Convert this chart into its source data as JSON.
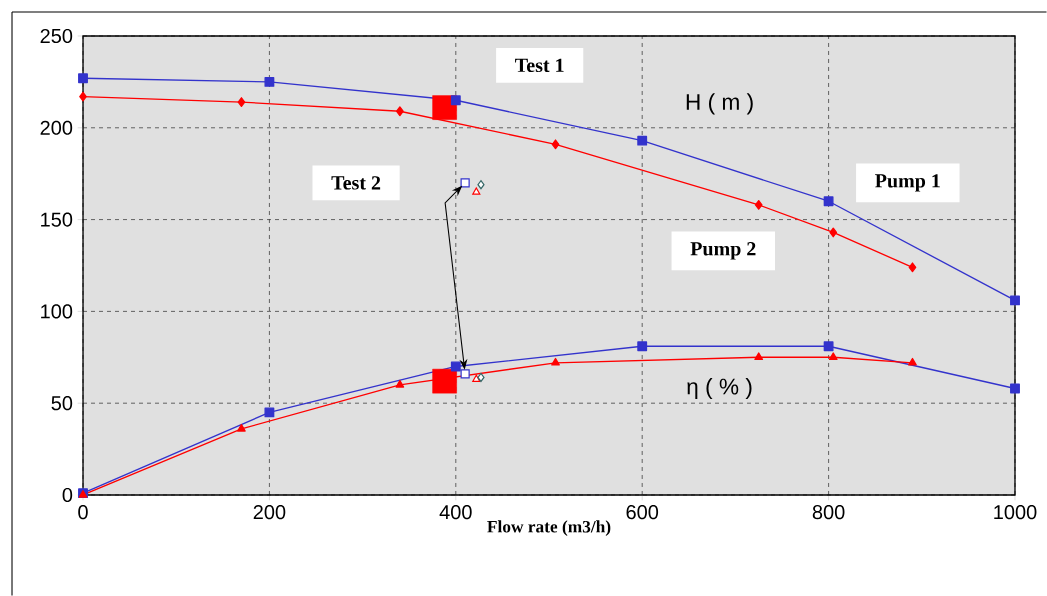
{
  "chart_data": {
    "type": "line",
    "xlabel": "Flow rate (m3/h)",
    "xlim": [
      0,
      1000
    ],
    "ylim": [
      0,
      250
    ],
    "xticks": [
      0,
      200,
      400,
      600,
      800,
      1000
    ],
    "yticks": [
      0,
      50,
      100,
      150,
      200,
      250
    ],
    "grid": true,
    "line_style": "solid",
    "series": [
      {
        "color": "#3333cc",
        "marker": "square",
        "x": [
          0,
          200,
          400,
          600,
          800,
          1000
        ],
        "values": [
          227,
          225,
          215,
          193,
          160,
          106
        ]
      },
      {
        "color": "#ff0000",
        "marker": "diamond",
        "x": [
          0,
          170,
          340,
          507,
          725,
          805,
          890
        ],
        "values": [
          217,
          214,
          209,
          191,
          158,
          143,
          124
        ]
      },
      {
        "color": "#3333cc",
        "marker": "square",
        "x": [
          0,
          200,
          400,
          600,
          800,
          1000
        ],
        "values": [
          1,
          45,
          70,
          81,
          81,
          58
        ]
      },
      {
        "color": "#ff0000",
        "marker": "triangle",
        "x": [
          0,
          170,
          340,
          507,
          725,
          805,
          890
        ],
        "values": [
          0,
          36,
          60,
          72,
          75,
          75,
          72
        ]
      },
      {
        "type": "scatter",
        "color": "#ff0000",
        "marker": "square",
        "x": [
          388,
          388
        ],
        "values": [
          211,
          62
        ]
      },
      {
        "type": "scatter",
        "color": "#3333cc",
        "marker": "square",
        "x": [
          410,
          410
        ],
        "values": [
          170,
          66
        ]
      },
      {
        "type": "scatter",
        "color": "#ff0000",
        "marker": "triangle",
        "x": [
          422,
          422
        ],
        "values": [
          165,
          63
        ]
      },
      {
        "type": "scatter",
        "color": "#336666",
        "marker": "diamond",
        "x": [
          427,
          427
        ],
        "values": [
          169,
          64
        ]
      }
    ],
    "annotations": [
      "Test 1",
      "Test 2",
      "Pump 1",
      "Pump 2",
      "H ( m )",
      "η ( % )"
    ]
  }
}
